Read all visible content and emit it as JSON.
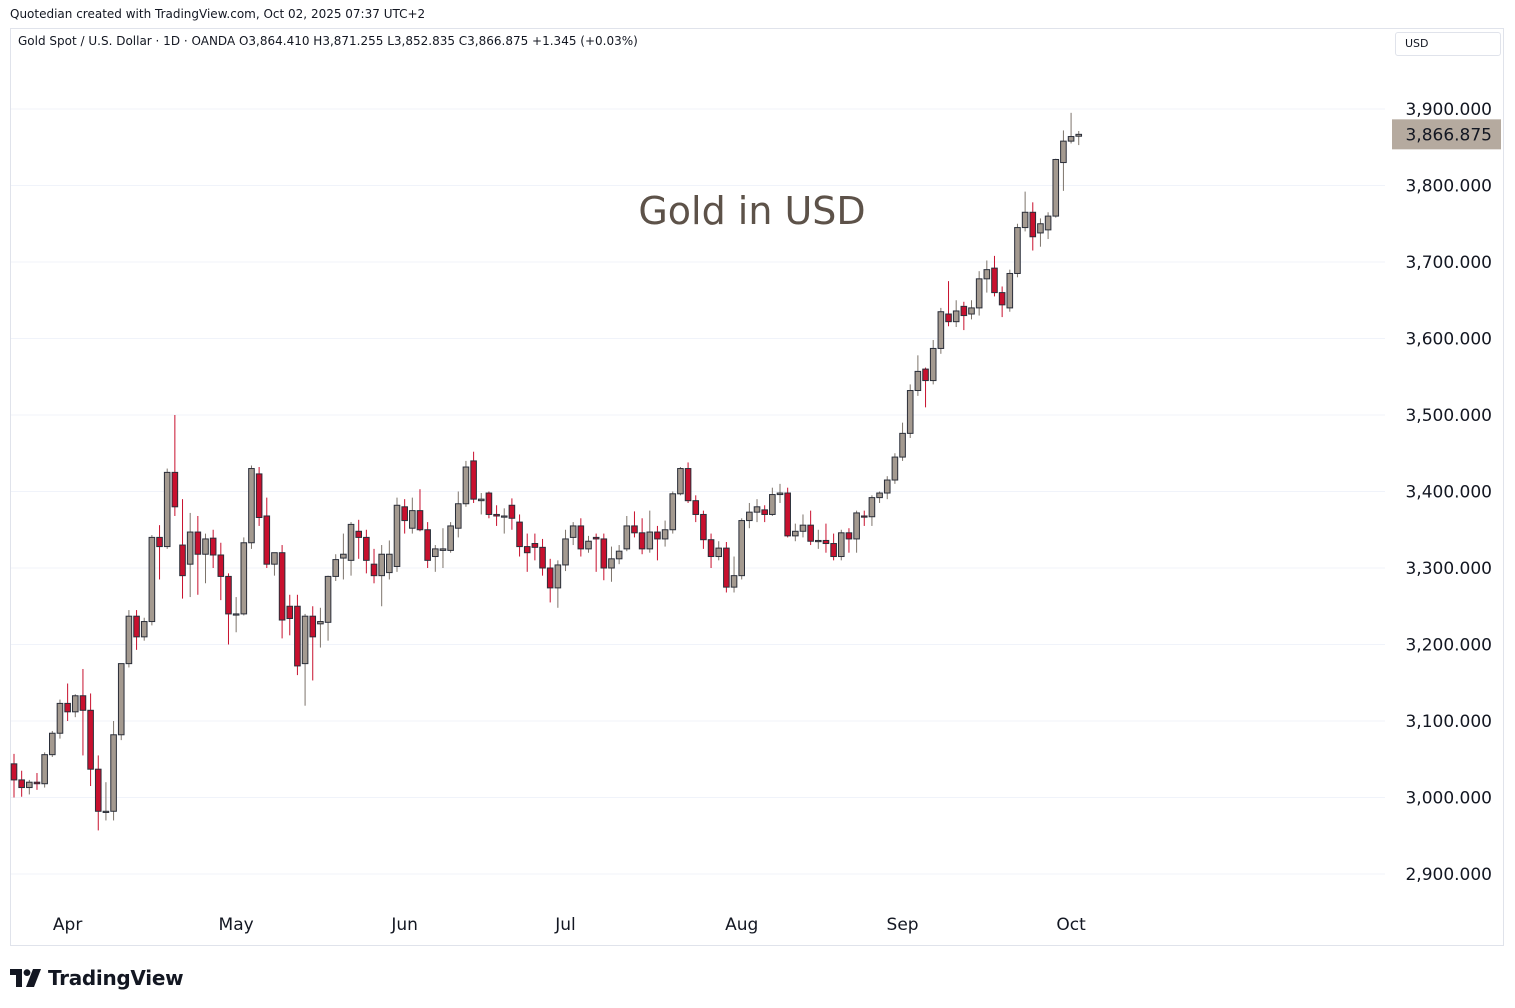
{
  "attribution": "Quotedian created with TradingView.com, Oct 02, 2025 07:37 UTC+2",
  "legend": "Gold Spot / U.S. Dollar · 1D · OANDA  O3,864.410  H3,871.255  L3,852.835  C3,866.875  +1.345 (+0.03%)",
  "currency_selector": "USD",
  "brand": "TradingView",
  "colors": {
    "up": "#a49a90",
    "down": "#c8102e",
    "wick": "#2a2e39",
    "last_price_bg": "#b5aa9f",
    "title": "#5d5249",
    "grid": "#f0f3fa"
  },
  "chart_data": {
    "type": "candlestick",
    "title": "Gold in USD",
    "y_axis": {
      "ticks": [
        2900,
        3000,
        3100,
        3200,
        3300,
        3400,
        3500,
        3600,
        3700,
        3800,
        3900
      ],
      "tick_labels": [
        "2,900.000",
        "3,000.000",
        "3,100.000",
        "3,200.000",
        "3,300.000",
        "3,400.000",
        "3,500.000",
        "3,600.000",
        "3,700.000",
        "3,800.000",
        "3,900.000"
      ],
      "range": [
        2865,
        3940
      ]
    },
    "x_axis": {
      "labels": [
        {
          "label": "Apr",
          "date": "2025-04-01"
        },
        {
          "label": "May",
          "date": "2025-05-01"
        },
        {
          "label": "Jun",
          "date": "2025-06-02"
        },
        {
          "label": "Jul",
          "date": "2025-07-01"
        },
        {
          "label": "Aug",
          "date": "2025-08-01"
        },
        {
          "label": "Sep",
          "date": "2025-09-01"
        },
        {
          "label": "Oct",
          "date": "2025-10-01"
        }
      ]
    },
    "last_price": 3866.875,
    "last_price_label": "3,866.875",
    "candles": [
      {
        "d": "2025-03-21",
        "o": 3044,
        "h": 3057,
        "l": 3000,
        "c": 3023
      },
      {
        "d": "2025-03-24",
        "o": 3023,
        "h": 3035,
        "l": 3001,
        "c": 3013
      },
      {
        "d": "2025-03-25",
        "o": 3013,
        "h": 3023,
        "l": 3004,
        "c": 3020
      },
      {
        "d": "2025-03-26",
        "o": 3020,
        "h": 3032,
        "l": 3010,
        "c": 3018
      },
      {
        "d": "2025-03-27",
        "o": 3018,
        "h": 3059,
        "l": 3013,
        "c": 3056
      },
      {
        "d": "2025-03-28",
        "o": 3056,
        "h": 3087,
        "l": 3053,
        "c": 3084
      },
      {
        "d": "2025-03-31",
        "o": 3084,
        "h": 3128,
        "l": 3077,
        "c": 3123
      },
      {
        "d": "2025-04-01",
        "o": 3123,
        "h": 3149,
        "l": 3100,
        "c": 3112
      },
      {
        "d": "2025-04-02",
        "o": 3112,
        "h": 3135,
        "l": 3105,
        "c": 3133
      },
      {
        "d": "2025-04-03",
        "o": 3133,
        "h": 3168,
        "l": 3055,
        "c": 3114
      },
      {
        "d": "2025-04-04",
        "o": 3114,
        "h": 3136,
        "l": 3015,
        "c": 3037
      },
      {
        "d": "2025-04-07",
        "o": 3037,
        "h": 3055,
        "l": 2957,
        "c": 2982
      },
      {
        "d": "2025-04-08",
        "o": 2982,
        "h": 3020,
        "l": 2970,
        "c": 2982
      },
      {
        "d": "2025-04-09",
        "o": 2982,
        "h": 3100,
        "l": 2970,
        "c": 3082
      },
      {
        "d": "2025-04-10",
        "o": 3082,
        "h": 3175,
        "l": 3075,
        "c": 3175
      },
      {
        "d": "2025-04-11",
        "o": 3175,
        "h": 3245,
        "l": 3170,
        "c": 3237
      },
      {
        "d": "2025-04-14",
        "o": 3237,
        "h": 3245,
        "l": 3193,
        "c": 3210
      },
      {
        "d": "2025-04-15",
        "o": 3210,
        "h": 3235,
        "l": 3205,
        "c": 3230
      },
      {
        "d": "2025-04-16",
        "o": 3230,
        "h": 3343,
        "l": 3225,
        "c": 3340
      },
      {
        "d": "2025-04-17",
        "o": 3340,
        "h": 3356,
        "l": 3285,
        "c": 3328
      },
      {
        "d": "2025-04-18",
        "o": 3328,
        "h": 3430,
        "l": 3325,
        "c": 3425
      },
      {
        "d": "2025-04-21",
        "o": 3425,
        "h": 3500,
        "l": 3368,
        "c": 3380
      },
      {
        "d": "2025-04-22",
        "o": 3330,
        "h": 3390,
        "l": 3260,
        "c": 3290
      },
      {
        "d": "2025-04-23",
        "o": 3305,
        "h": 3372,
        "l": 3262,
        "c": 3347
      },
      {
        "d": "2025-04-24",
        "o": 3347,
        "h": 3368,
        "l": 3265,
        "c": 3318
      },
      {
        "d": "2025-04-25",
        "o": 3318,
        "h": 3345,
        "l": 3280,
        "c": 3338
      },
      {
        "d": "2025-04-28",
        "o": 3339,
        "h": 3350,
        "l": 3300,
        "c": 3317
      },
      {
        "d": "2025-04-29",
        "o": 3317,
        "h": 3333,
        "l": 3258,
        "c": 3289
      },
      {
        "d": "2025-04-30",
        "o": 3289,
        "h": 3293,
        "l": 3200,
        "c": 3240
      },
      {
        "d": "2025-05-01",
        "o": 3240,
        "h": 3262,
        "l": 3216,
        "c": 3240
      },
      {
        "d": "2025-05-02",
        "o": 3240,
        "h": 3340,
        "l": 3238,
        "c": 3333
      },
      {
        "d": "2025-05-05",
        "o": 3333,
        "h": 3434,
        "l": 3325,
        "c": 3430
      },
      {
        "d": "2025-05-06",
        "o": 3423,
        "h": 3432,
        "l": 3355,
        "c": 3366
      },
      {
        "d": "2025-05-07",
        "o": 3368,
        "h": 3392,
        "l": 3300,
        "c": 3305
      },
      {
        "d": "2025-05-08",
        "o": 3305,
        "h": 3320,
        "l": 3290,
        "c": 3320
      },
      {
        "d": "2025-05-09",
        "o": 3320,
        "h": 3330,
        "l": 3208,
        "c": 3232
      },
      {
        "d": "2025-05-12",
        "o": 3250,
        "h": 3265,
        "l": 3212,
        "c": 3234
      },
      {
        "d": "2025-05-13",
        "o": 3250,
        "h": 3265,
        "l": 3160,
        "c": 3172
      },
      {
        "d": "2025-05-14",
        "o": 3175,
        "h": 3240,
        "l": 3120,
        "c": 3237
      },
      {
        "d": "2025-05-15",
        "o": 3237,
        "h": 3250,
        "l": 3153,
        "c": 3210
      },
      {
        "d": "2025-05-16",
        "o": 3227,
        "h": 3248,
        "l": 3196,
        "c": 3230
      },
      {
        "d": "2025-05-19",
        "o": 3229,
        "h": 3290,
        "l": 3205,
        "c": 3289
      },
      {
        "d": "2025-05-20",
        "o": 3289,
        "h": 3318,
        "l": 3283,
        "c": 3311
      },
      {
        "d": "2025-05-21",
        "o": 3313,
        "h": 3345,
        "l": 3285,
        "c": 3318
      },
      {
        "d": "2025-05-22",
        "o": 3310,
        "h": 3360,
        "l": 3290,
        "c": 3357
      },
      {
        "d": "2025-05-23",
        "o": 3348,
        "h": 3363,
        "l": 3312,
        "c": 3340
      },
      {
        "d": "2025-05-26",
        "o": 3340,
        "h": 3350,
        "l": 3293,
        "c": 3310
      },
      {
        "d": "2025-05-27",
        "o": 3305,
        "h": 3325,
        "l": 3280,
        "c": 3290
      },
      {
        "d": "2025-05-28",
        "o": 3290,
        "h": 3330,
        "l": 3250,
        "c": 3318
      },
      {
        "d": "2025-05-29",
        "o": 3294,
        "h": 3336,
        "l": 3285,
        "c": 3318
      },
      {
        "d": "2025-05-30",
        "o": 3302,
        "h": 3392,
        "l": 3295,
        "c": 3382
      },
      {
        "d": "2025-06-02",
        "o": 3380,
        "h": 3390,
        "l": 3345,
        "c": 3362
      },
      {
        "d": "2025-06-03",
        "o": 3352,
        "h": 3392,
        "l": 3345,
        "c": 3375
      },
      {
        "d": "2025-06-04",
        "o": 3375,
        "h": 3403,
        "l": 3348,
        "c": 3350
      },
      {
        "d": "2025-06-05",
        "o": 3350,
        "h": 3360,
        "l": 3300,
        "c": 3310
      },
      {
        "d": "2025-06-06",
        "o": 3315,
        "h": 3330,
        "l": 3295,
        "c": 3325
      },
      {
        "d": "2025-06-09",
        "o": 3323,
        "h": 3352,
        "l": 3300,
        "c": 3325
      },
      {
        "d": "2025-06-10",
        "o": 3323,
        "h": 3360,
        "l": 3320,
        "c": 3355
      },
      {
        "d": "2025-06-11",
        "o": 3352,
        "h": 3400,
        "l": 3340,
        "c": 3384
      },
      {
        "d": "2025-06-12",
        "o": 3384,
        "h": 3440,
        "l": 3380,
        "c": 3432
      },
      {
        "d": "2025-06-13",
        "o": 3440,
        "h": 3452,
        "l": 3385,
        "c": 3390
      },
      {
        "d": "2025-06-16",
        "o": 3388,
        "h": 3398,
        "l": 3370,
        "c": 3390
      },
      {
        "d": "2025-06-17",
        "o": 3398,
        "h": 3400,
        "l": 3365,
        "c": 3370
      },
      {
        "d": "2025-06-18",
        "o": 3370,
        "h": 3382,
        "l": 3355,
        "c": 3368
      },
      {
        "d": "2025-06-19",
        "o": 3368,
        "h": 3378,
        "l": 3345,
        "c": 3368
      },
      {
        "d": "2025-06-20",
        "o": 3382,
        "h": 3391,
        "l": 3350,
        "c": 3365
      },
      {
        "d": "2025-06-23",
        "o": 3360,
        "h": 3370,
        "l": 3315,
        "c": 3328
      },
      {
        "d": "2025-06-24",
        "o": 3328,
        "h": 3345,
        "l": 3295,
        "c": 3320
      },
      {
        "d": "2025-06-25",
        "o": 3332,
        "h": 3345,
        "l": 3310,
        "c": 3327
      },
      {
        "d": "2025-06-26",
        "o": 3327,
        "h": 3338,
        "l": 3290,
        "c": 3300
      },
      {
        "d": "2025-06-27",
        "o": 3300,
        "h": 3312,
        "l": 3255,
        "c": 3274
      },
      {
        "d": "2025-06-30",
        "o": 3274,
        "h": 3310,
        "l": 3248,
        "c": 3304
      },
      {
        "d": "2025-07-01",
        "o": 3304,
        "h": 3350,
        "l": 3296,
        "c": 3338
      },
      {
        "d": "2025-07-02",
        "o": 3340,
        "h": 3360,
        "l": 3330,
        "c": 3355
      },
      {
        "d": "2025-07-03",
        "o": 3355,
        "h": 3365,
        "l": 3315,
        "c": 3325
      },
      {
        "d": "2025-07-04",
        "o": 3325,
        "h": 3342,
        "l": 3320,
        "c": 3335
      },
      {
        "d": "2025-07-07",
        "o": 3340,
        "h": 3345,
        "l": 3295,
        "c": 3338
      },
      {
        "d": "2025-07-08",
        "o": 3338,
        "h": 3345,
        "l": 3284,
        "c": 3300
      },
      {
        "d": "2025-07-09",
        "o": 3300,
        "h": 3328,
        "l": 3282,
        "c": 3312
      },
      {
        "d": "2025-07-10",
        "o": 3312,
        "h": 3330,
        "l": 3305,
        "c": 3322
      },
      {
        "d": "2025-07-11",
        "o": 3325,
        "h": 3368,
        "l": 3322,
        "c": 3355
      },
      {
        "d": "2025-07-14",
        "o": 3355,
        "h": 3374,
        "l": 3340,
        "c": 3346
      },
      {
        "d": "2025-07-15",
        "o": 3346,
        "h": 3365,
        "l": 3318,
        "c": 3325
      },
      {
        "d": "2025-07-16",
        "o": 3325,
        "h": 3375,
        "l": 3320,
        "c": 3347
      },
      {
        "d": "2025-07-17",
        "o": 3347,
        "h": 3355,
        "l": 3310,
        "c": 3338
      },
      {
        "d": "2025-07-18",
        "o": 3338,
        "h": 3362,
        "l": 3328,
        "c": 3350
      },
      {
        "d": "2025-07-21",
        "o": 3350,
        "h": 3400,
        "l": 3345,
        "c": 3397
      },
      {
        "d": "2025-07-22",
        "o": 3397,
        "h": 3432,
        "l": 3395,
        "c": 3430
      },
      {
        "d": "2025-07-23",
        "o": 3430,
        "h": 3438,
        "l": 3385,
        "c": 3388
      },
      {
        "d": "2025-07-24",
        "o": 3388,
        "h": 3395,
        "l": 3360,
        "c": 3370
      },
      {
        "d": "2025-07-25",
        "o": 3370,
        "h": 3375,
        "l": 3325,
        "c": 3337
      },
      {
        "d": "2025-07-28",
        "o": 3337,
        "h": 3345,
        "l": 3300,
        "c": 3315
      },
      {
        "d": "2025-07-29",
        "o": 3315,
        "h": 3335,
        "l": 3310,
        "c": 3326
      },
      {
        "d": "2025-07-30",
        "o": 3326,
        "h": 3334,
        "l": 3268,
        "c": 3275
      },
      {
        "d": "2025-07-31",
        "o": 3275,
        "h": 3315,
        "l": 3268,
        "c": 3290
      },
      {
        "d": "2025-08-01",
        "o": 3290,
        "h": 3365,
        "l": 3285,
        "c": 3362
      },
      {
        "d": "2025-08-04",
        "o": 3362,
        "h": 3385,
        "l": 3352,
        "c": 3373
      },
      {
        "d": "2025-08-05",
        "o": 3373,
        "h": 3390,
        "l": 3360,
        "c": 3380
      },
      {
        "d": "2025-08-06",
        "o": 3376,
        "h": 3382,
        "l": 3360,
        "c": 3370
      },
      {
        "d": "2025-08-07",
        "o": 3370,
        "h": 3405,
        "l": 3368,
        "c": 3396
      },
      {
        "d": "2025-08-08",
        "o": 3396,
        "h": 3410,
        "l": 3385,
        "c": 3398
      },
      {
        "d": "2025-08-11",
        "o": 3398,
        "h": 3405,
        "l": 3340,
        "c": 3342
      },
      {
        "d": "2025-08-12",
        "o": 3342,
        "h": 3358,
        "l": 3335,
        "c": 3348
      },
      {
        "d": "2025-08-13",
        "o": 3348,
        "h": 3370,
        "l": 3340,
        "c": 3356
      },
      {
        "d": "2025-08-14",
        "o": 3356,
        "h": 3375,
        "l": 3330,
        "c": 3335
      },
      {
        "d": "2025-08-15",
        "o": 3335,
        "h": 3350,
        "l": 3325,
        "c": 3336
      },
      {
        "d": "2025-08-18",
        "o": 3336,
        "h": 3358,
        "l": 3320,
        "c": 3332
      },
      {
        "d": "2025-08-19",
        "o": 3332,
        "h": 3345,
        "l": 3310,
        "c": 3315
      },
      {
        "d": "2025-08-20",
        "o": 3315,
        "h": 3350,
        "l": 3310,
        "c": 3346
      },
      {
        "d": "2025-08-21",
        "o": 3346,
        "h": 3352,
        "l": 3320,
        "c": 3338
      },
      {
        "d": "2025-08-22",
        "o": 3338,
        "h": 3375,
        "l": 3320,
        "c": 3372
      },
      {
        "d": "2025-08-25",
        "o": 3368,
        "h": 3375,
        "l": 3355,
        "c": 3367
      },
      {
        "d": "2025-08-26",
        "o": 3367,
        "h": 3395,
        "l": 3355,
        "c": 3392
      },
      {
        "d": "2025-08-27",
        "o": 3392,
        "h": 3400,
        "l": 3385,
        "c": 3398
      },
      {
        "d": "2025-08-28",
        "o": 3398,
        "h": 3420,
        "l": 3390,
        "c": 3415
      },
      {
        "d": "2025-08-29",
        "o": 3415,
        "h": 3450,
        "l": 3410,
        "c": 3445
      },
      {
        "d": "2025-09-01",
        "o": 3445,
        "h": 3490,
        "l": 3440,
        "c": 3476
      },
      {
        "d": "2025-09-02",
        "o": 3476,
        "h": 3540,
        "l": 3470,
        "c": 3532
      },
      {
        "d": "2025-09-03",
        "o": 3532,
        "h": 3578,
        "l": 3525,
        "c": 3557
      },
      {
        "d": "2025-09-04",
        "o": 3560,
        "h": 3562,
        "l": 3510,
        "c": 3545
      },
      {
        "d": "2025-09-05",
        "o": 3545,
        "h": 3598,
        "l": 3540,
        "c": 3587
      },
      {
        "d": "2025-09-08",
        "o": 3587,
        "h": 3640,
        "l": 3580,
        "c": 3635
      },
      {
        "d": "2025-09-09",
        "o": 3632,
        "h": 3675,
        "l": 3616,
        "c": 3622
      },
      {
        "d": "2025-09-10",
        "o": 3622,
        "h": 3650,
        "l": 3615,
        "c": 3636
      },
      {
        "d": "2025-09-11",
        "o": 3642,
        "h": 3648,
        "l": 3611,
        "c": 3630
      },
      {
        "d": "2025-09-12",
        "o": 3632,
        "h": 3650,
        "l": 3625,
        "c": 3640
      },
      {
        "d": "2025-09-15",
        "o": 3640,
        "h": 3688,
        "l": 3630,
        "c": 3678
      },
      {
        "d": "2025-09-16",
        "o": 3678,
        "h": 3702,
        "l": 3660,
        "c": 3690
      },
      {
        "d": "2025-09-17",
        "o": 3692,
        "h": 3708,
        "l": 3655,
        "c": 3660
      },
      {
        "d": "2025-09-18",
        "o": 3660,
        "h": 3668,
        "l": 3628,
        "c": 3644
      },
      {
        "d": "2025-09-19",
        "o": 3640,
        "h": 3690,
        "l": 3635,
        "c": 3685
      },
      {
        "d": "2025-09-22",
        "o": 3685,
        "h": 3750,
        "l": 3680,
        "c": 3745
      },
      {
        "d": "2025-09-23",
        "o": 3745,
        "h": 3792,
        "l": 3740,
        "c": 3765
      },
      {
        "d": "2025-09-24",
        "o": 3765,
        "h": 3778,
        "l": 3715,
        "c": 3733
      },
      {
        "d": "2025-09-25",
        "o": 3738,
        "h": 3757,
        "l": 3720,
        "c": 3750
      },
      {
        "d": "2025-09-26",
        "o": 3742,
        "h": 3765,
        "l": 3730,
        "c": 3760
      },
      {
        "d": "2025-09-29",
        "o": 3760,
        "h": 3835,
        "l": 3758,
        "c": 3834
      },
      {
        "d": "2025-09-30",
        "o": 3830,
        "h": 3872,
        "l": 3793,
        "c": 3858
      },
      {
        "d": "2025-10-01",
        "o": 3858,
        "h": 3895,
        "l": 3855,
        "c": 3864
      },
      {
        "d": "2025-10-02",
        "o": 3864.41,
        "h": 3871.255,
        "l": 3852.835,
        "c": 3866.875
      }
    ]
  }
}
